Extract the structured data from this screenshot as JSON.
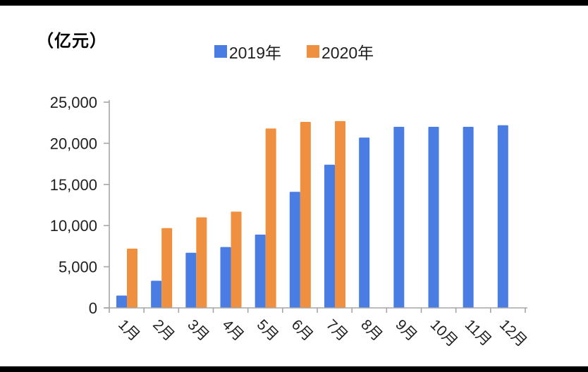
{
  "frame": {
    "top_border": true,
    "bottom_border": true,
    "border_color": "#000000"
  },
  "unit_label": "（亿元）",
  "chart_data": {
    "type": "bar",
    "title": "",
    "xlabel": "",
    "ylabel": "（亿元）",
    "categories": [
      "1月",
      "2月",
      "3月",
      "4月",
      "5月",
      "6月",
      "7月",
      "8月",
      "9月",
      "10月",
      "11月",
      "12月"
    ],
    "series": [
      {
        "name": "2019年",
        "color": "#4a7de3",
        "values": [
          1500,
          3300,
          6700,
          7400,
          8900,
          14100,
          17400,
          20700,
          22000,
          22000,
          22000,
          22200
        ]
      },
      {
        "name": "2020年",
        "color": "#ee9040",
        "values": [
          7200,
          9700,
          11000,
          11700,
          21800,
          22600,
          22700,
          null,
          null,
          null,
          null,
          null
        ]
      }
    ],
    "ylim": [
      0,
      25000
    ],
    "y_ticks": [
      0,
      5000,
      10000,
      15000,
      20000,
      25000
    ],
    "y_tick_labels": [
      "0",
      "5,000",
      "10,000",
      "15,000",
      "20,000",
      "25,000"
    ],
    "grid": false,
    "legend_position": "top-center",
    "axis_color": "#a6a6a6",
    "tick_label_color": "#1f1f1f",
    "x_label_rotation_deg": 45
  }
}
